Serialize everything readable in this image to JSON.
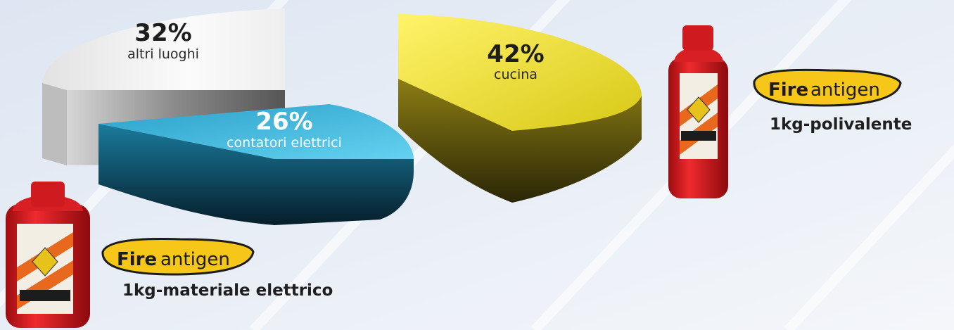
{
  "chart_data": {
    "type": "pie",
    "style": "3d-exploded",
    "slices": [
      {
        "percent": 32,
        "label": "altri luoghi",
        "pct_text": "32%",
        "color_top": "#f4f4f4",
        "color_side": "#6e6e6e"
      },
      {
        "percent": 26,
        "label": "contatori elettrici",
        "pct_text": "26%",
        "color_top": "#3fb6dc",
        "color_side": "#0e3f52"
      },
      {
        "percent": 42,
        "label": "cucina",
        "pct_text": "42%",
        "color_top": "#f0e22a",
        "color_side": "#4a4308"
      }
    ]
  },
  "products": [
    {
      "brand_bold": "Fire",
      "brand_thin": "antigen",
      "caption": "1kg-polivalente"
    },
    {
      "brand_bold": "Fire",
      "brand_thin": "antigen",
      "caption": "1kg-materiale elettrico"
    }
  ]
}
